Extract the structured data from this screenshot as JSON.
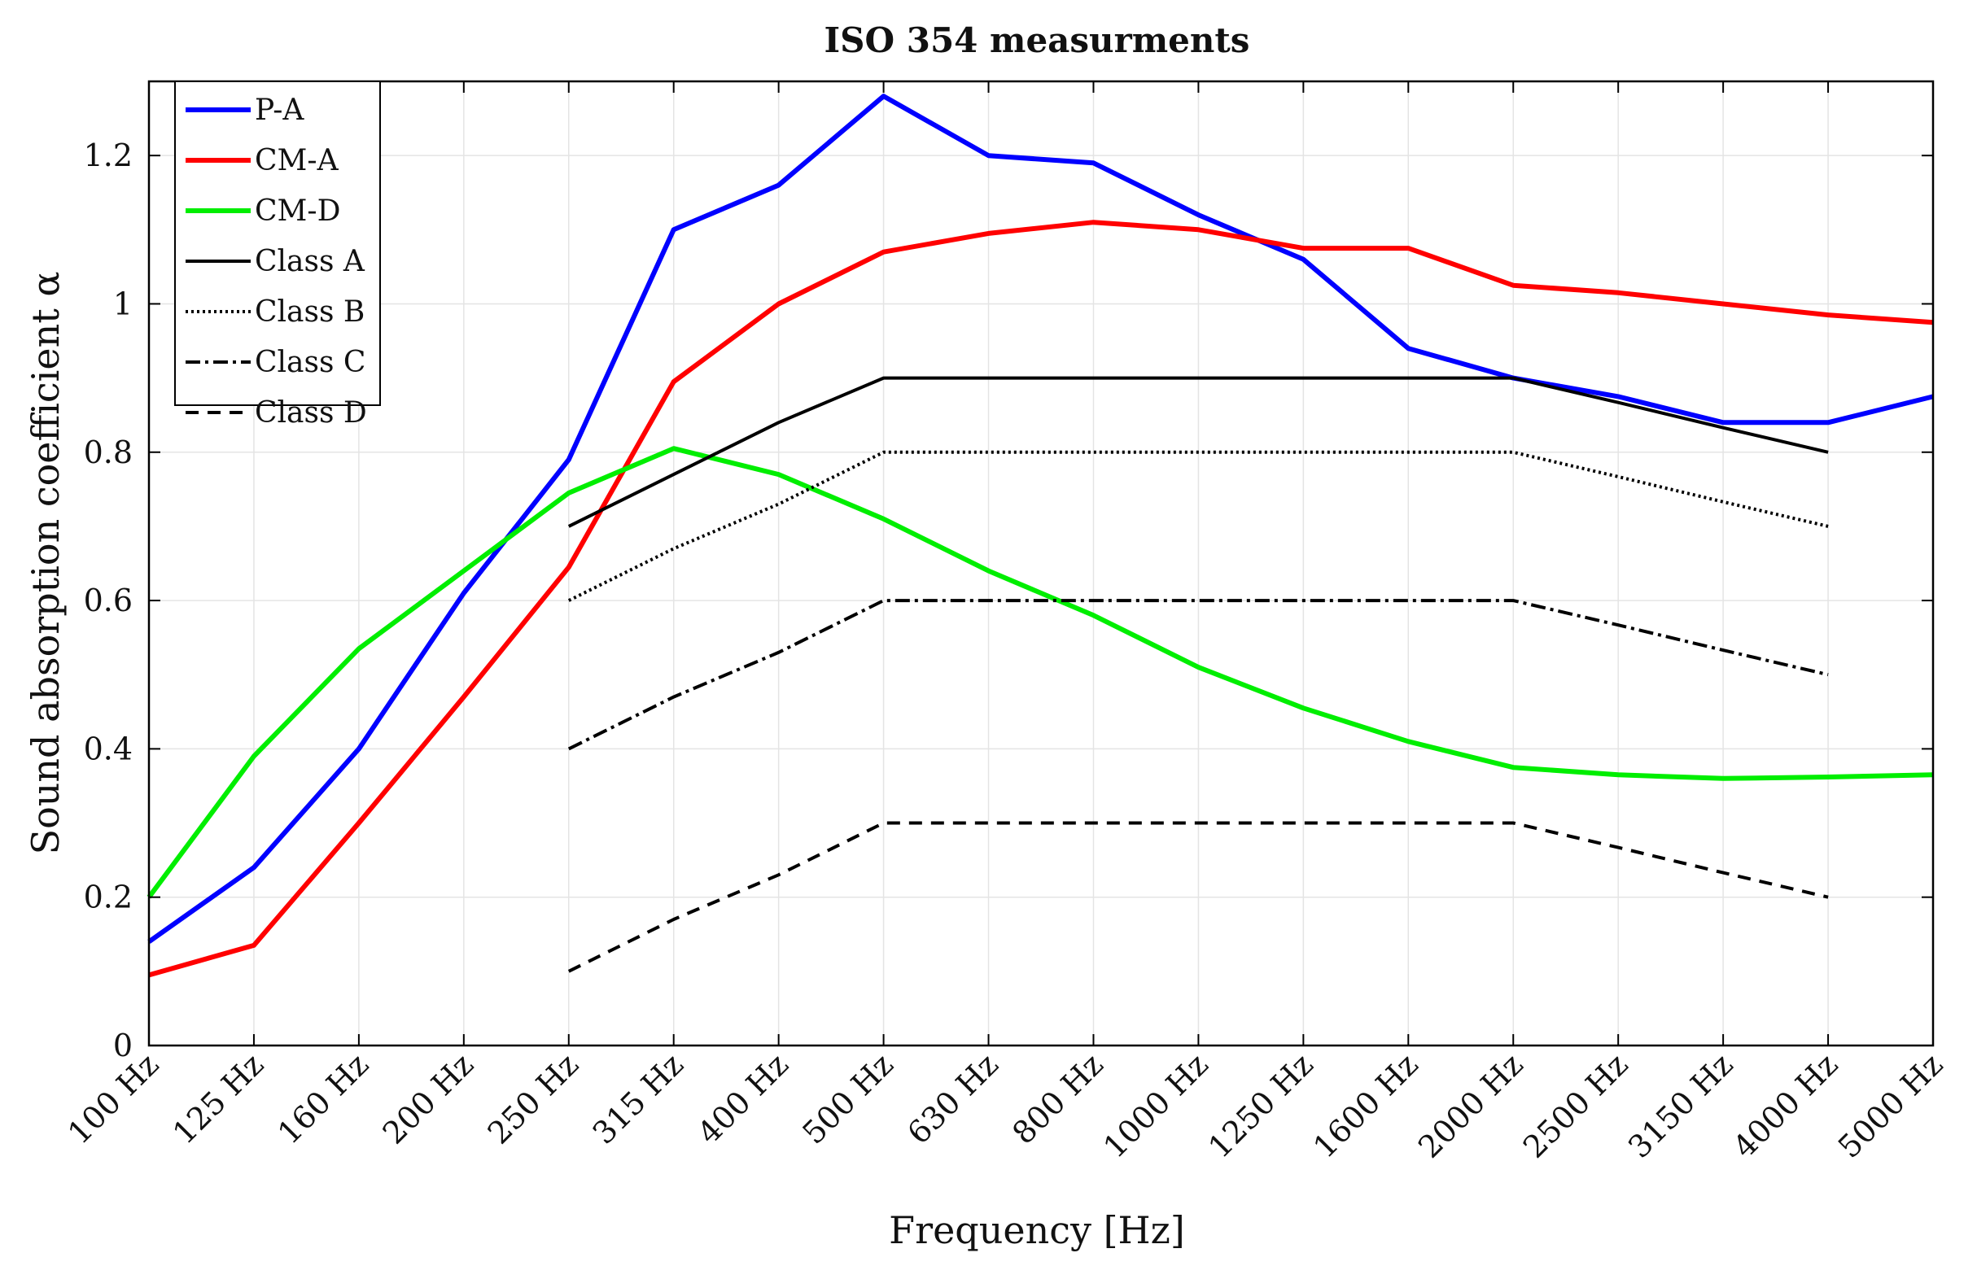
{
  "chart_data": {
    "type": "line",
    "title": "ISO 354 measurments",
    "xlabel": "Frequency [Hz]",
    "ylabel": "Sound absorption coefficient α",
    "categories": [
      "100 Hz",
      "125 Hz",
      "160 Hz",
      "200 Hz",
      "250 Hz",
      "315 Hz",
      "400 Hz",
      "500 Hz",
      "630 Hz",
      "800 Hz",
      "1000 Hz",
      "1250 Hz",
      "1600 Hz",
      "2000 Hz",
      "2500 Hz",
      "3150 Hz",
      "4000 Hz",
      "5000 Hz"
    ],
    "ylim": [
      0,
      1.3
    ],
    "yticks": [
      0,
      0.2,
      0.4,
      0.6,
      0.8,
      1,
      1.2
    ],
    "ytick_labels": [
      "0",
      "0.2",
      "0.4",
      "0.6",
      "0.8",
      "1",
      "1.2"
    ],
    "grid": true,
    "legend_position": "top-left",
    "series": [
      {
        "name": "P-A",
        "color": "#0000ff",
        "style": "solid",
        "width": "thick",
        "values": [
          0.14,
          0.24,
          0.4,
          0.61,
          0.79,
          1.1,
          1.16,
          1.28,
          1.2,
          1.19,
          1.12,
          1.06,
          0.94,
          0.9,
          0.875,
          0.84,
          0.84,
          0.875
        ]
      },
      {
        "name": "CM-A",
        "color": "#ff0000",
        "style": "solid",
        "width": "thick",
        "values": [
          0.095,
          0.135,
          0.3,
          0.47,
          0.645,
          0.895,
          1.0,
          1.07,
          1.095,
          1.11,
          1.1,
          1.075,
          1.075,
          1.025,
          1.015,
          1.0,
          0.985,
          0.975
        ]
      },
      {
        "name": "CM-D",
        "color": "#00ee00",
        "style": "solid",
        "width": "thick",
        "values": [
          0.2,
          0.39,
          0.535,
          0.64,
          0.745,
          0.805,
          0.77,
          0.71,
          0.64,
          0.58,
          0.51,
          0.455,
          0.41,
          0.375,
          0.365,
          0.36,
          0.362,
          0.365
        ]
      },
      {
        "name": "Class A",
        "color": "#000000",
        "style": "solid",
        "width": "normal",
        "values": [
          null,
          null,
          null,
          null,
          0.7,
          0.77,
          0.84,
          0.9,
          0.9,
          0.9,
          0.9,
          0.9,
          0.9,
          0.9,
          0.867,
          0.833,
          0.8,
          null
        ]
      },
      {
        "name": "Class B",
        "color": "#000000",
        "style": "dotted",
        "width": "normal",
        "values": [
          null,
          null,
          null,
          null,
          0.6,
          0.67,
          0.73,
          0.8,
          0.8,
          0.8,
          0.8,
          0.8,
          0.8,
          0.8,
          0.767,
          0.733,
          0.7,
          null
        ]
      },
      {
        "name": "Class C",
        "color": "#000000",
        "style": "dashdot",
        "width": "normal",
        "values": [
          null,
          null,
          null,
          null,
          0.4,
          0.47,
          0.53,
          0.6,
          0.6,
          0.6,
          0.6,
          0.6,
          0.6,
          0.6,
          0.567,
          0.533,
          0.5,
          null
        ]
      },
      {
        "name": "Class D",
        "color": "#000000",
        "style": "dashed",
        "width": "normal",
        "values": [
          null,
          null,
          null,
          null,
          0.1,
          0.17,
          0.23,
          0.3,
          0.3,
          0.3,
          0.3,
          0.3,
          0.3,
          0.3,
          0.267,
          0.233,
          0.2,
          null
        ]
      }
    ]
  }
}
